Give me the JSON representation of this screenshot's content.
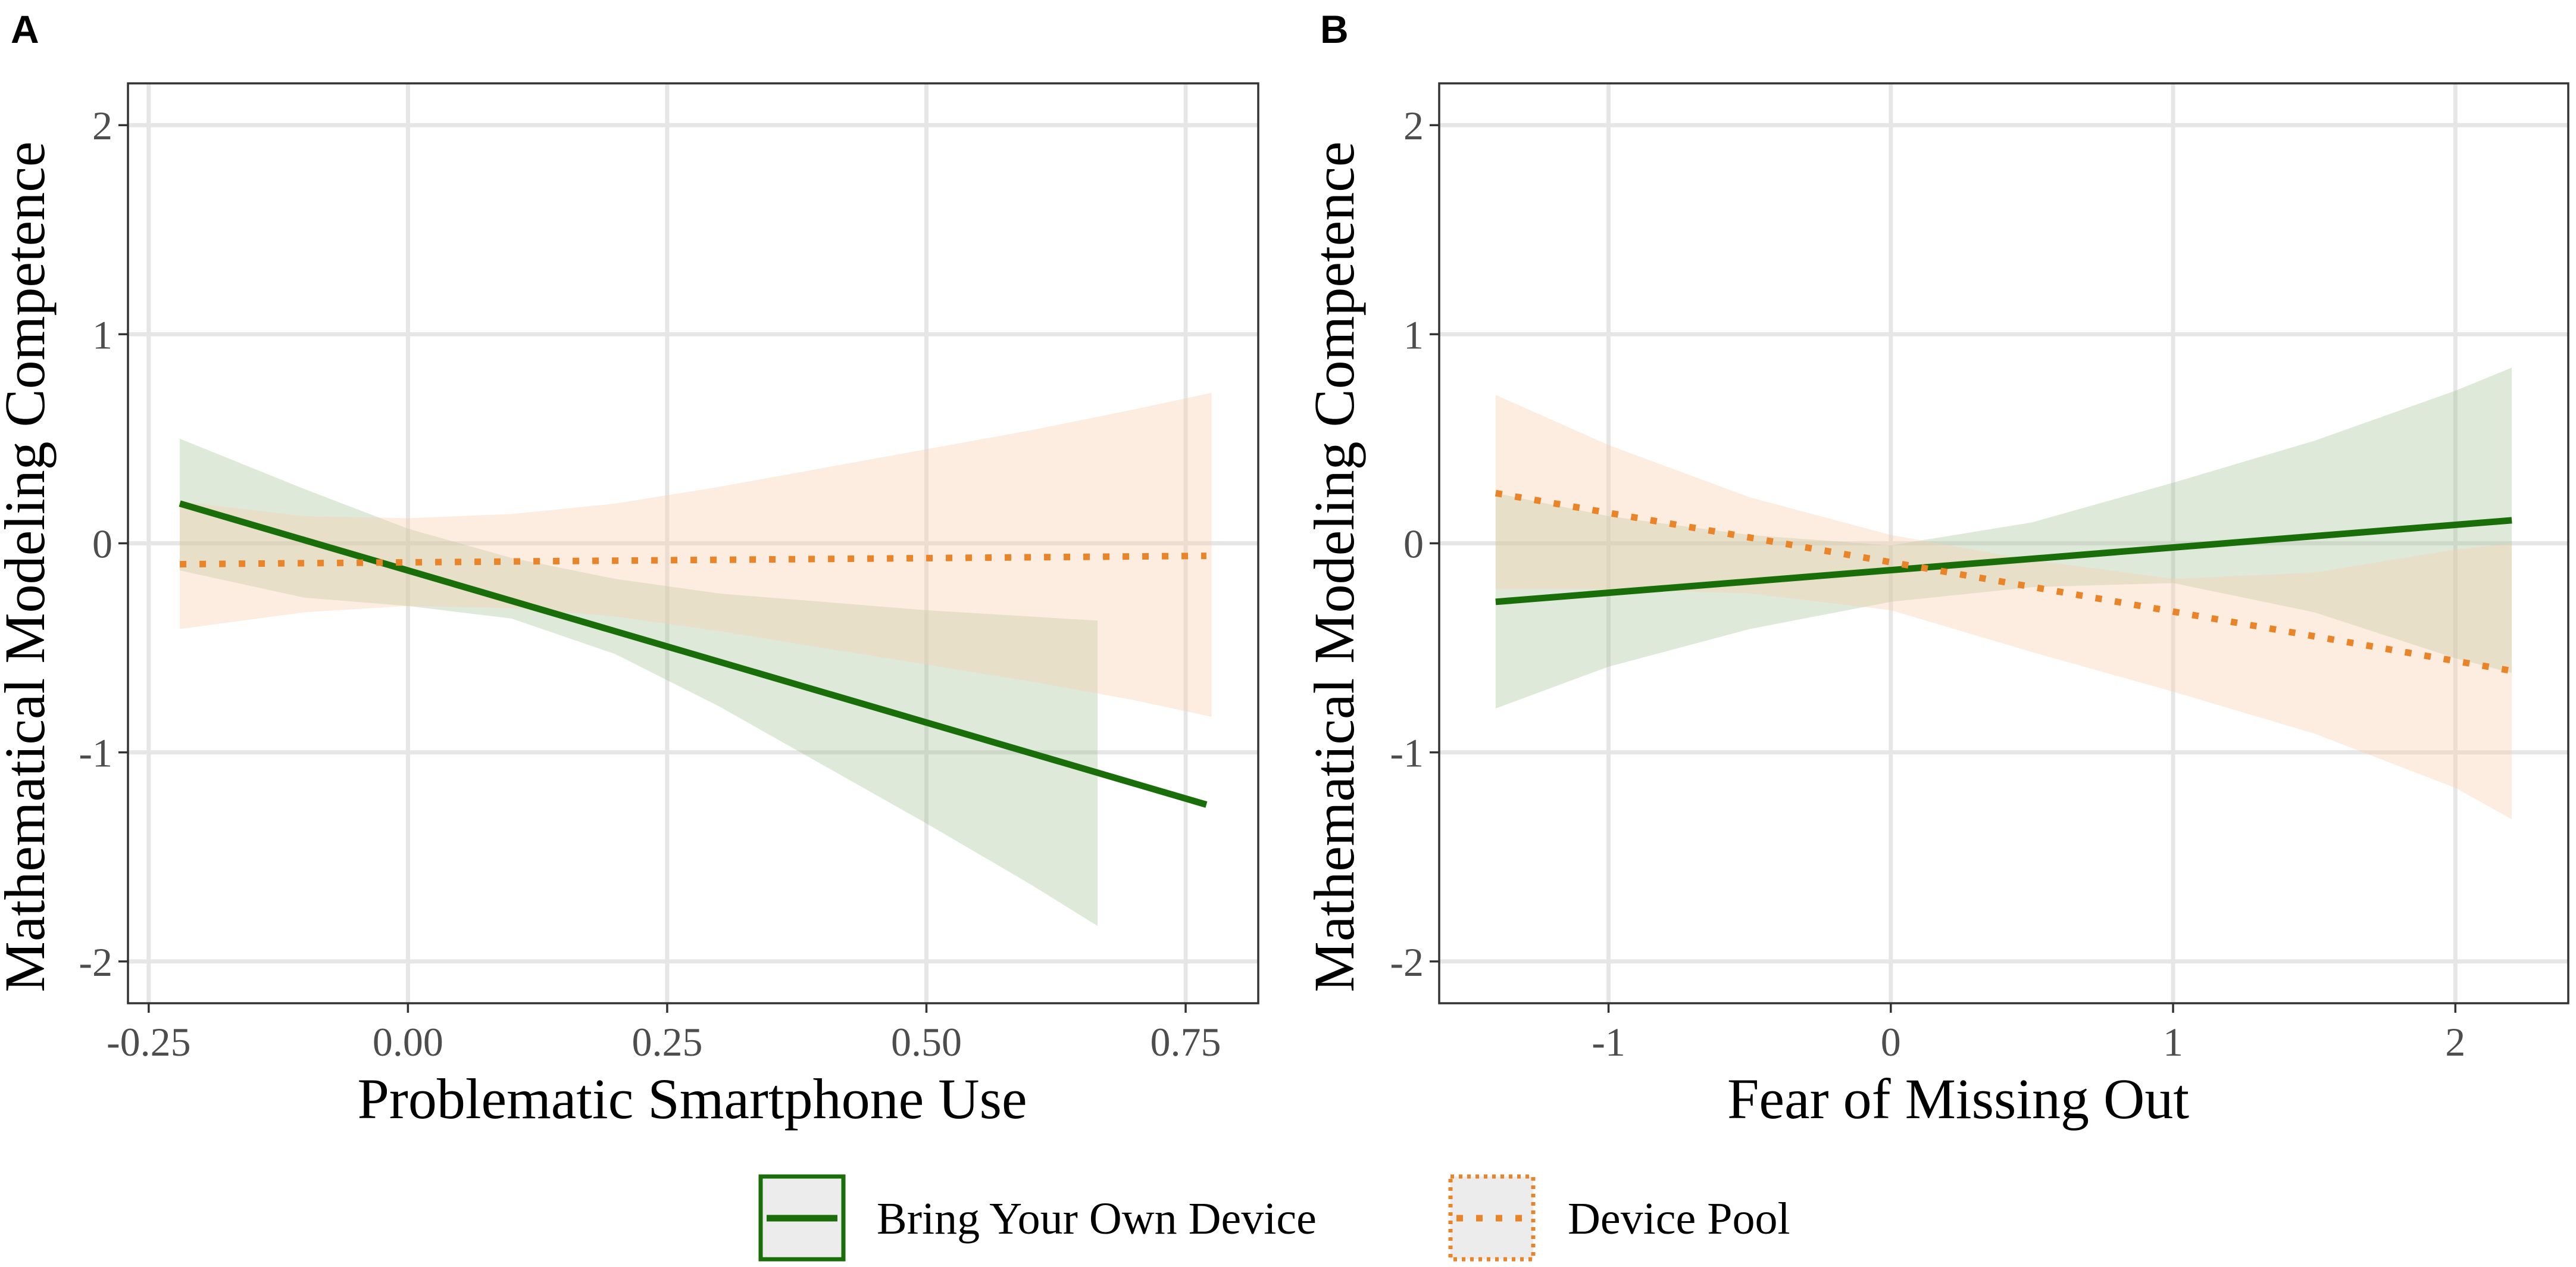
{
  "chart_data": [
    {
      "type": "line",
      "panel": "A",
      "xlabel": "Problematic Smartphone Use",
      "ylabel": "Mathematical Modeling Competence",
      "xlim": [
        -0.27,
        0.82
      ],
      "ylim": [
        -2.2,
        2.2
      ],
      "xticks": [
        -0.25,
        0.0,
        0.25,
        0.5,
        0.75
      ],
      "xtick_labels": [
        "-0.25",
        "0.00",
        "0.25",
        "0.50",
        "0.75"
      ],
      "yticks": [
        2,
        1,
        0,
        -1,
        -2
      ],
      "ytick_labels": [
        "2",
        "1",
        "0",
        "-1",
        "-2"
      ],
      "grid": true,
      "series": [
        {
          "name": "Bring Your Own Device",
          "style": "solid",
          "line": {
            "x": [
              -0.22,
              0.77
            ],
            "y": [
              0.19,
              -1.25
            ]
          },
          "ribbon": {
            "x": [
              -0.22,
              -0.1,
              0.0,
              0.1,
              0.2,
              0.3,
              0.4,
              0.5,
              0.6,
              0.665
            ],
            "upper": [
              0.5,
              0.26,
              0.07,
              -0.07,
              -0.17,
              -0.24,
              -0.28,
              -0.32,
              -0.35,
              -0.37
            ],
            "lower": [
              -0.13,
              -0.26,
              -0.3,
              -0.36,
              -0.53,
              -0.78,
              -1.06,
              -1.34,
              -1.63,
              -1.83
            ]
          }
        },
        {
          "name": "Device Pool",
          "style": "dotted",
          "line": {
            "x": [
              -0.22,
              0.77
            ],
            "y": [
              -0.1,
              -0.06
            ]
          },
          "ribbon": {
            "x": [
              -0.22,
              -0.1,
              0.0,
              0.1,
              0.2,
              0.3,
              0.4,
              0.5,
              0.6,
              0.7,
              0.775
            ],
            "upper": [
              0.2,
              0.13,
              0.12,
              0.14,
              0.19,
              0.27,
              0.36,
              0.45,
              0.54,
              0.64,
              0.72
            ],
            "lower": [
              -0.41,
              -0.33,
              -0.3,
              -0.31,
              -0.35,
              -0.42,
              -0.5,
              -0.58,
              -0.66,
              -0.75,
              -0.83
            ]
          }
        }
      ]
    },
    {
      "type": "line",
      "panel": "B",
      "xlabel": "Fear of Missing Out",
      "ylabel": "Mathematical Modeling Competence",
      "xlim": [
        -1.6,
        2.4
      ],
      "ylim": [
        -2.2,
        2.2
      ],
      "xticks": [
        -1,
        0,
        1,
        2
      ],
      "xtick_labels": [
        "-1",
        "0",
        "1",
        "2"
      ],
      "yticks": [
        2,
        1,
        0,
        -1,
        -2
      ],
      "ytick_labels": [
        "2",
        "1",
        "0",
        "-1",
        "-2"
      ],
      "grid": true,
      "series": [
        {
          "name": "Bring Your Own Device",
          "style": "solid",
          "line": {
            "x": [
              -1.4,
              2.2
            ],
            "y": [
              -0.28,
              0.11
            ]
          },
          "ribbon": {
            "x": [
              -1.4,
              -1.0,
              -0.5,
              0.0,
              0.5,
              1.0,
              1.5,
              2.0,
              2.2
            ],
            "upper": [
              0.24,
              0.13,
              0.04,
              -0.01,
              0.1,
              0.29,
              0.49,
              0.73,
              0.84
            ],
            "lower": [
              -0.79,
              -0.59,
              -0.41,
              -0.28,
              -0.21,
              -0.19,
              -0.33,
              -0.55,
              -0.62
            ]
          }
        },
        {
          "name": "Device Pool",
          "style": "dotted",
          "line": {
            "x": [
              -1.4,
              2.2
            ],
            "y": [
              0.24,
              -0.61
            ]
          },
          "ribbon": {
            "x": [
              -1.4,
              -1.0,
              -0.5,
              0.0,
              0.5,
              1.0,
              1.5,
              2.0,
              2.2
            ],
            "upper": [
              0.71,
              0.47,
              0.22,
              0.04,
              -0.08,
              -0.17,
              -0.14,
              -0.03,
              0.0
            ],
            "lower": [
              -0.22,
              -0.22,
              -0.24,
              -0.32,
              -0.52,
              -0.71,
              -0.91,
              -1.17,
              -1.32
            ]
          }
        }
      ]
    }
  ],
  "legend": {
    "items": [
      {
        "label": "Bring Your Own Device",
        "style": "solid"
      },
      {
        "label": "Device Pool",
        "style": "dotted"
      }
    ]
  },
  "colors": {
    "byod_line": "#1a6e0a",
    "byod_fill": "#9dbf93",
    "pool_line": "#e98428",
    "pool_fill": "#fbcfae",
    "legend_key_bg": "#ececec"
  }
}
